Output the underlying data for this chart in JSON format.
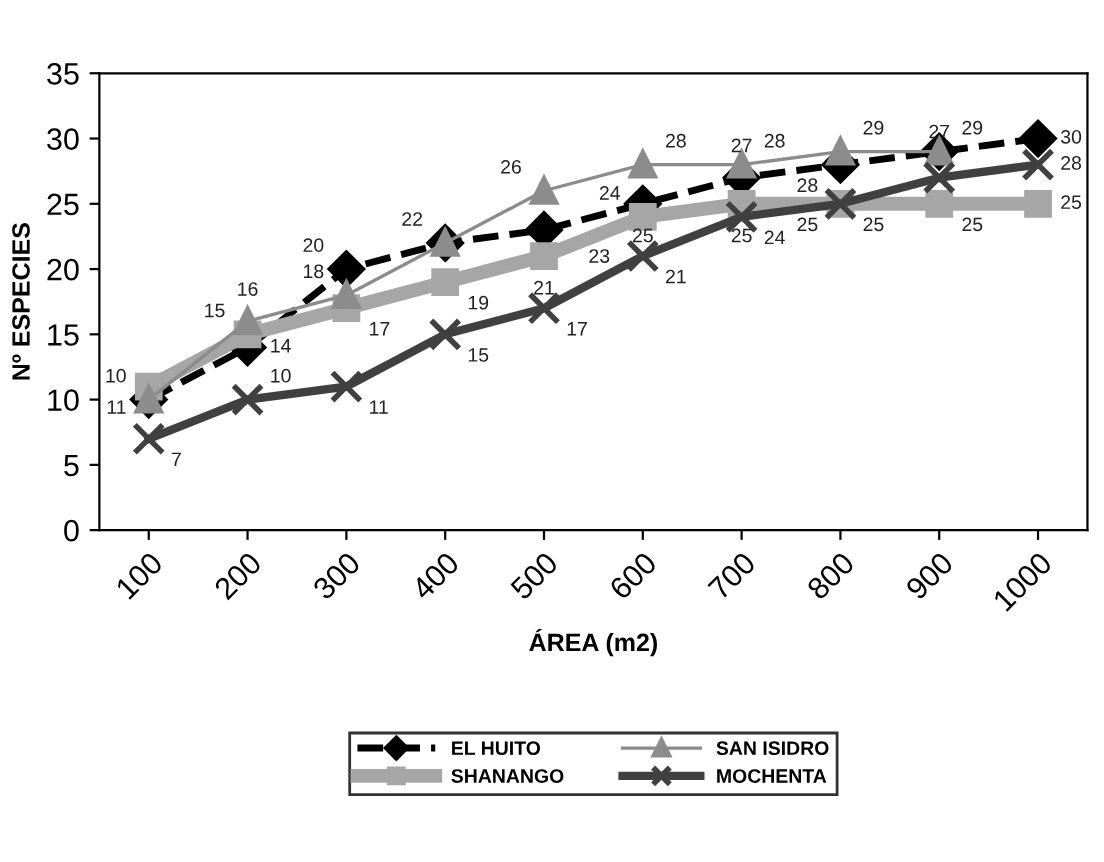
{
  "chart_data": {
    "type": "line",
    "xlabel": "ÁREA (m2)",
    "ylabel": "Nº ESPECIES",
    "categories": [
      "100",
      "200",
      "300",
      "400",
      "500",
      "600",
      "700",
      "800",
      "900",
      "1000"
    ],
    "ylim": [
      0,
      35
    ],
    "yticks": [
      0,
      5,
      10,
      15,
      20,
      25,
      30,
      35
    ],
    "grid": false,
    "legend": "bottom",
    "data_labels": true,
    "series": [
      {
        "name": "EL HUITO",
        "color": "#000000",
        "marker": "diamond",
        "line_style": "dashed",
        "values": [
          10,
          14,
          20,
          22,
          23,
          25,
          27,
          28,
          29,
          30
        ]
      },
      {
        "name": "SHANANGO",
        "color": "#a6a6a6",
        "marker": "square",
        "line_style": "solid",
        "values": [
          11,
          15,
          17,
          19,
          21,
          24,
          25,
          25,
          25,
          25
        ]
      },
      {
        "name": "SAN ISIDRO",
        "color": "#8c8c8c",
        "marker": "triangle",
        "line_style": "solid",
        "values": [
          10,
          16,
          18,
          22,
          26,
          28,
          28,
          29,
          29,
          null
        ],
        "value_labels": [
          null,
          "16",
          "18",
          null,
          "26",
          "28",
          "28",
          "29",
          null,
          null
        ]
      },
      {
        "name": "MOCHENTA",
        "color": "#404040",
        "marker": "cross",
        "line_style": "solid",
        "values": [
          7,
          10,
          11,
          15,
          17,
          21,
          24,
          25,
          27,
          28
        ]
      }
    ]
  }
}
